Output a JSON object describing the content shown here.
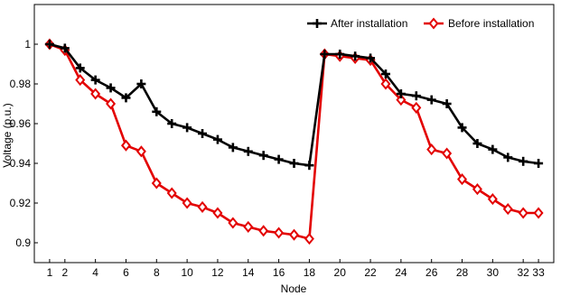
{
  "chart_data": {
    "type": "line",
    "xlabel": "Node",
    "ylabel": "Voltage (p.u.)",
    "xlim": [
      0,
      34
    ],
    "ylim": [
      0.89,
      1.02
    ],
    "x_ticks": [
      1,
      2,
      4,
      6,
      8,
      10,
      12,
      14,
      16,
      18,
      20,
      22,
      24,
      26,
      28,
      30,
      32,
      33
    ],
    "y_ticks": [
      0.9,
      0.92,
      0.94,
      0.96,
      0.98,
      1.0
    ],
    "y_tick_labels": [
      "0.9",
      "0.92",
      "0.94",
      "0.96",
      "0.98",
      "1"
    ],
    "grid": false,
    "legend_position": "top-right",
    "series": [
      {
        "name": "After installation",
        "color": "#000000",
        "marker": "plus",
        "x": [
          1,
          2,
          3,
          4,
          5,
          6,
          7,
          8,
          9,
          10,
          11,
          12,
          13,
          14,
          15,
          16,
          17,
          18,
          19,
          20,
          21,
          22,
          23,
          24,
          25,
          26,
          27,
          28,
          29,
          30,
          31,
          32,
          33
        ],
        "values": [
          1.0,
          0.998,
          0.988,
          0.982,
          0.978,
          0.973,
          0.98,
          0.966,
          0.96,
          0.958,
          0.955,
          0.952,
          0.948,
          0.946,
          0.944,
          0.942,
          0.94,
          0.939,
          0.995,
          0.995,
          0.994,
          0.993,
          0.985,
          0.975,
          0.974,
          0.972,
          0.97,
          0.958,
          0.95,
          0.947,
          0.943,
          0.941,
          0.94
        ]
      },
      {
        "name": "Before installation",
        "color": "#e30000",
        "marker": "diamond",
        "x": [
          1,
          2,
          3,
          4,
          5,
          6,
          7,
          8,
          9,
          10,
          11,
          12,
          13,
          14,
          15,
          16,
          17,
          18,
          19,
          20,
          21,
          22,
          23,
          24,
          25,
          26,
          27,
          28,
          29,
          30,
          31,
          32,
          33
        ],
        "values": [
          1.0,
          0.997,
          0.982,
          0.975,
          0.97,
          0.949,
          0.946,
          0.93,
          0.925,
          0.92,
          0.918,
          0.915,
          0.91,
          0.908,
          0.906,
          0.905,
          0.904,
          0.902,
          0.995,
          0.994,
          0.993,
          0.992,
          0.98,
          0.972,
          0.968,
          0.947,
          0.945,
          0.932,
          0.927,
          0.922,
          0.917,
          0.915,
          0.915
        ]
      }
    ]
  }
}
